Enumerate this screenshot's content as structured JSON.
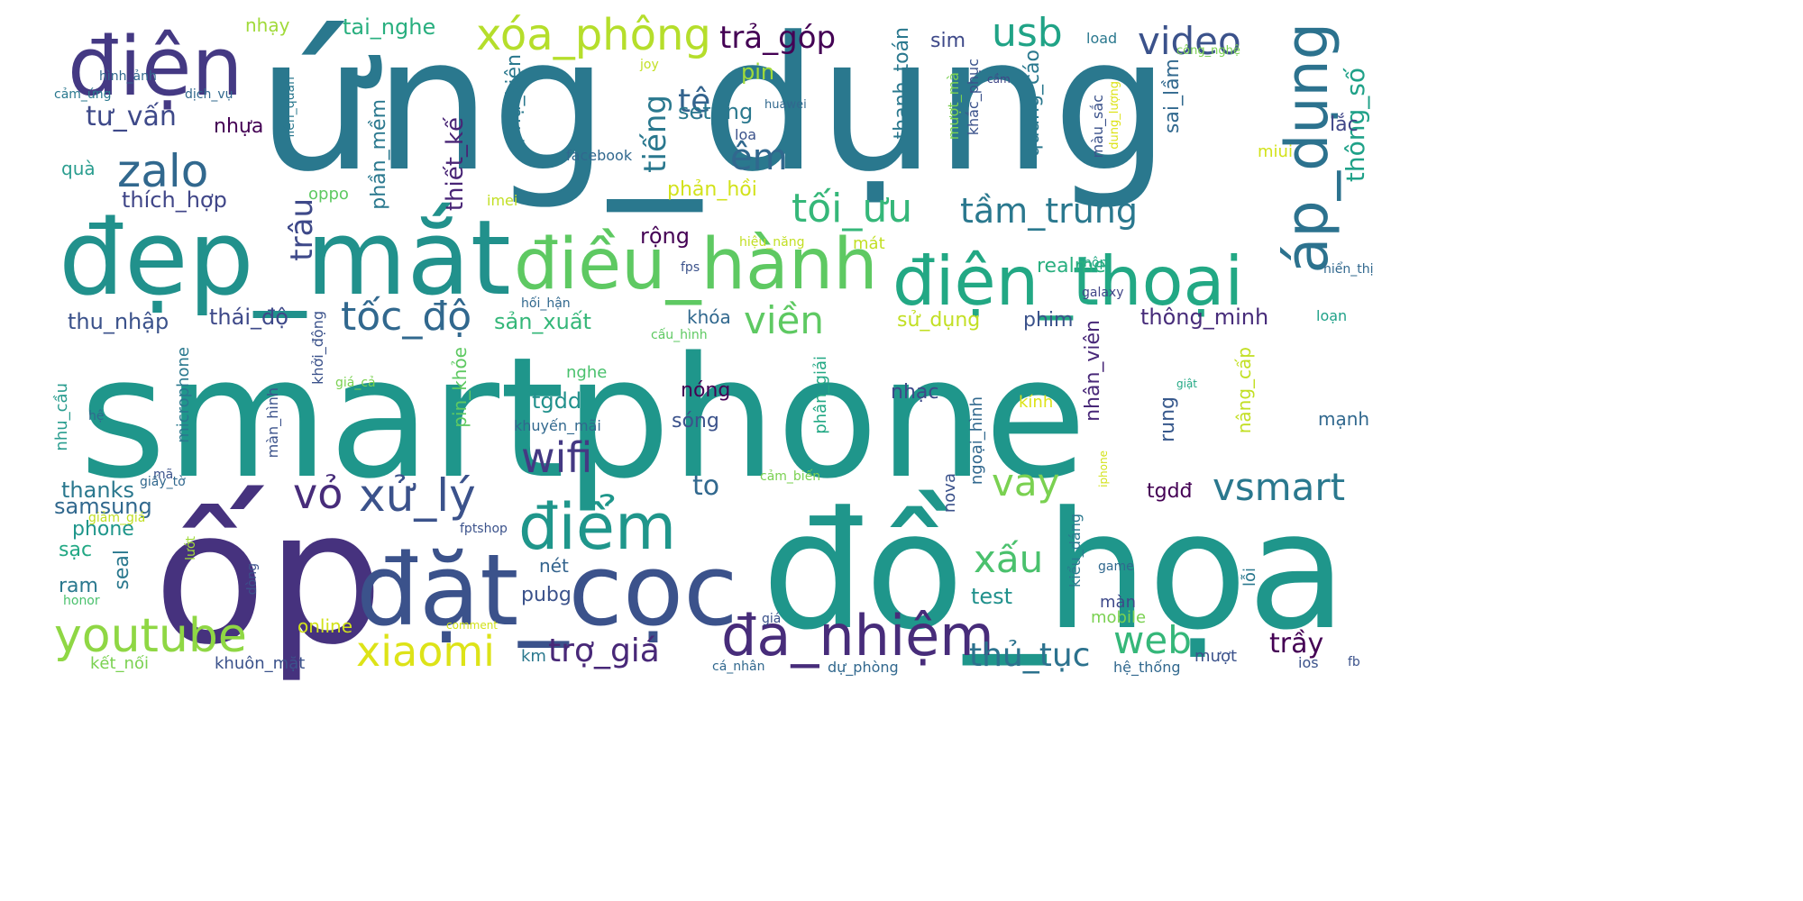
{
  "word_cloud": {
    "words": [
      {
        "text": "smartphone",
        "color": "#1f968b"
      },
      {
        "text": "ứng_dụng",
        "color": "#2a788e"
      },
      {
        "text": "ốp",
        "color": "#46327e"
      },
      {
        "text": "đồ_họa",
        "color": "#1f968b"
      },
      {
        "text": "đẹp_mắt",
        "color": "#21918c"
      },
      {
        "text": "điện",
        "color": "#443983"
      },
      {
        "text": "đặt_cọc",
        "color": "#3b528b"
      },
      {
        "text": "điều_hành",
        "color": "#5ec962"
      },
      {
        "text": "điện_thoại",
        "color": "#22a884"
      },
      {
        "text": "đa_nhiệm",
        "color": "#472c7a"
      },
      {
        "text": "điểm",
        "color": "#1f968b"
      },
      {
        "text": "áp_dụng",
        "color": "#2c728e"
      },
      {
        "text": "xóa_phông",
        "color": "#b5de2b"
      },
      {
        "text": "youtube",
        "color": "#8fd744"
      },
      {
        "text": "zalo",
        "color": "#31688e"
      },
      {
        "text": "tối_ưu",
        "color": "#35b779"
      },
      {
        "text": "tầm_trung",
        "color": "#2a788e"
      },
      {
        "text": "xử_lý",
        "color": "#3b528b"
      },
      {
        "text": "xiaomi",
        "color": "#dde318"
      },
      {
        "text": "vỏ",
        "color": "#472c7a"
      },
      {
        "text": "wifi",
        "color": "#443983"
      },
      {
        "text": "viền",
        "color": "#5ec962"
      },
      {
        "text": "video",
        "color": "#3b528b"
      },
      {
        "text": "usb",
        "color": "#20a386"
      },
      {
        "text": "tốc_độ",
        "color": "#31688e"
      },
      {
        "text": "vay",
        "color": "#7ad151"
      },
      {
        "text": "vsmart",
        "color": "#2a788e"
      },
      {
        "text": "web",
        "color": "#35b779"
      },
      {
        "text": "xấu",
        "color": "#4ac16d"
      },
      {
        "text": "trợ_giá",
        "color": "#482878"
      },
      {
        "text": "thủ_tục",
        "color": "#2c728e"
      },
      {
        "text": "trả_góp",
        "color": "#440154"
      },
      {
        "text": "êm",
        "color": "#31688e"
      },
      {
        "text": "tệ",
        "color": "#33638d"
      },
      {
        "text": "tư_vấn",
        "color": "#3e4989"
      },
      {
        "text": "trâu",
        "color": "#3e4989"
      },
      {
        "text": "thông_số",
        "color": "#1fa188"
      },
      {
        "text": "tiếng",
        "color": "#2a788e"
      },
      {
        "text": "thích_hợp",
        "color": "#404688"
      },
      {
        "text": "thiết_kế",
        "color": "#482475"
      },
      {
        "text": "thu_nhập",
        "color": "#3b528b"
      },
      {
        "text": "thái_độ",
        "color": "#3e4989"
      },
      {
        "text": "sản_xuất",
        "color": "#35b779"
      },
      {
        "text": "thông_minh",
        "color": "#472c7a"
      },
      {
        "text": "phụ_kiện",
        "color": "#2a788e"
      },
      {
        "text": "phần_mềm",
        "color": "#2a788e"
      },
      {
        "text": "tai_nghe",
        "color": "#29af7f"
      },
      {
        "text": "setting",
        "color": "#2a788e"
      },
      {
        "text": "pin",
        "color": "#a0da39"
      },
      {
        "text": "thanh_toán",
        "color": "#2a788e"
      },
      {
        "text": "sim",
        "color": "#3e4989"
      },
      {
        "text": "quảng_cáo",
        "color": "#2a788e"
      },
      {
        "text": "sai_lầm",
        "color": "#31688e"
      },
      {
        "text": "lắc",
        "color": "#404688"
      },
      {
        "text": "rộng",
        "color": "#440154"
      },
      {
        "text": "realme",
        "color": "#29af7f"
      },
      {
        "text": "sử_dụng",
        "color": "#c2df23"
      },
      {
        "text": "phim",
        "color": "#3b528b"
      },
      {
        "text": "khóa",
        "color": "#31688e"
      },
      {
        "text": "tgdd",
        "color": "#21918c"
      },
      {
        "text": "nóng",
        "color": "#440154"
      },
      {
        "text": "sóng",
        "color": "#3b528b"
      },
      {
        "text": "nhạc",
        "color": "#3e4989"
      },
      {
        "text": "phản_hồi",
        "color": "#d2e21b"
      },
      {
        "text": "nhân_viên",
        "color": "#482878"
      },
      {
        "text": "rung",
        "color": "#38598c"
      },
      {
        "text": "tgdđ",
        "color": "#440154"
      },
      {
        "text": "to",
        "color": "#31688e"
      },
      {
        "text": "test",
        "color": "#21918c"
      },
      {
        "text": "trầy",
        "color": "#440154"
      },
      {
        "text": "nâng_cấp",
        "color": "#c2df23"
      },
      {
        "text": "mạnh",
        "color": "#31688e"
      },
      {
        "text": "thanks",
        "color": "#2a788e"
      },
      {
        "text": "samsung",
        "color": "#31688e"
      },
      {
        "text": "phone",
        "color": "#1f968b"
      },
      {
        "text": "sạc",
        "color": "#22a884"
      },
      {
        "text": "ram",
        "color": "#2a788e"
      },
      {
        "text": "seal",
        "color": "#2a788e"
      },
      {
        "text": "pubg",
        "color": "#3b528b"
      },
      {
        "text": "nét",
        "color": "#33638d"
      },
      {
        "text": "online",
        "color": "#d2e21b"
      },
      {
        "text": "kết_nối",
        "color": "#7ad151"
      },
      {
        "text": "khuôn_mặt",
        "color": "#3b528b"
      },
      {
        "text": "mượt",
        "color": "#3b528b"
      },
      {
        "text": "ios",
        "color": "#3b528b"
      },
      {
        "text": "km",
        "color": "#2a788e"
      },
      {
        "text": "dự_phòng",
        "color": "#31688e"
      },
      {
        "text": "hệ_thống",
        "color": "#31688e"
      },
      {
        "text": "fb",
        "color": "#3b528b"
      },
      {
        "text": "cá_nhân",
        "color": "#31688e"
      },
      {
        "text": "mobile",
        "color": "#7ad151"
      },
      {
        "text": "màn",
        "color": "#3e4989"
      },
      {
        "text": "lỗi",
        "color": "#2a788e"
      },
      {
        "text": "game",
        "color": "#31688e"
      },
      {
        "text": "kiểu_dáng",
        "color": "#2a788e"
      },
      {
        "text": "nova",
        "color": "#3b528b"
      },
      {
        "text": "ngoại_hình",
        "color": "#31688e"
      },
      {
        "text": "loạn",
        "color": "#1fa188"
      },
      {
        "text": "hiển_thị",
        "color": "#31688e"
      },
      {
        "text": "galaxy",
        "color": "#404688"
      },
      {
        "text": "hộp",
        "color": "#22a884"
      },
      {
        "text": "miui",
        "color": "#d2e21b"
      },
      {
        "text": "màu_sắc",
        "color": "#3b528b"
      },
      {
        "text": "dung_lượng",
        "color": "#dde318"
      },
      {
        "text": "khắc_phục",
        "color": "#3b528b"
      },
      {
        "text": "mượt_mà",
        "color": "#7ad151"
      },
      {
        "text": "load",
        "color": "#2a788e"
      },
      {
        "text": "công_nghệ",
        "color": "#7ad151"
      },
      {
        "text": "cầm",
        "color": "#404688"
      },
      {
        "text": "huawei",
        "color": "#31688e"
      },
      {
        "text": "joy",
        "color": "#c2df23"
      },
      {
        "text": "hình_ảnh",
        "color": "#31688e"
      },
      {
        "text": "nhạy",
        "color": "#a0da39"
      },
      {
        "text": "liên_quân",
        "color": "#2a788e"
      },
      {
        "text": "cảm_ứng",
        "color": "#2a788e"
      },
      {
        "text": "dịch_vụ",
        "color": "#31688e"
      },
      {
        "text": "nhựa",
        "color": "#440154"
      },
      {
        "text": "quà",
        "color": "#2a9d8f"
      },
      {
        "text": "facebook",
        "color": "#31688e"
      },
      {
        "text": "imei",
        "color": "#c2df23"
      },
      {
        "text": "oppo",
        "color": "#5ec962"
      },
      {
        "text": "loa",
        "color": "#3b528b"
      },
      {
        "text": "mát",
        "color": "#c2df23"
      },
      {
        "text": "hiệu_năng",
        "color": "#c2df23"
      },
      {
        "text": "fps",
        "color": "#3b528b"
      },
      {
        "text": "hối_hận",
        "color": "#31688e"
      },
      {
        "text": "cấu_hình",
        "color": "#5ec962"
      },
      {
        "text": "khởi_động",
        "color": "#3b528b"
      },
      {
        "text": "microphone",
        "color": "#2a788e"
      },
      {
        "text": "pin_khỏe",
        "color": "#5ec962"
      },
      {
        "text": "nghe",
        "color": "#4ac16d"
      },
      {
        "text": "phân_giải",
        "color": "#22a884"
      },
      {
        "text": "khuyến_mãi",
        "color": "#31688e"
      },
      {
        "text": "nhu_cầu",
        "color": "#2a9d8f"
      },
      {
        "text": "hệ",
        "color": "#31688e"
      },
      {
        "text": "màn_hình",
        "color": "#3b528b"
      },
      {
        "text": "giá_cả",
        "color": "#7ad151"
      },
      {
        "text": "mã",
        "color": "#3b528b"
      },
      {
        "text": "giấy_tờ",
        "color": "#31688e"
      },
      {
        "text": "giảm_giá",
        "color": "#c2df23"
      },
      {
        "text": "fptshop",
        "color": "#3b528b"
      },
      {
        "text": "lướt",
        "color": "#a0da39"
      },
      {
        "text": "dòng",
        "color": "#3b528b"
      },
      {
        "text": "honor",
        "color": "#4ac16d"
      },
      {
        "text": "comment",
        "color": "#d2e21b"
      },
      {
        "text": "giá",
        "color": "#3b528b"
      },
      {
        "text": "cảm_biến",
        "color": "#7ad151"
      },
      {
        "text": "iphone",
        "color": "#d2e21b"
      },
      {
        "text": "kính",
        "color": "#dde318"
      },
      {
        "text": "giật",
        "color": "#22a884"
      }
    ]
  }
}
